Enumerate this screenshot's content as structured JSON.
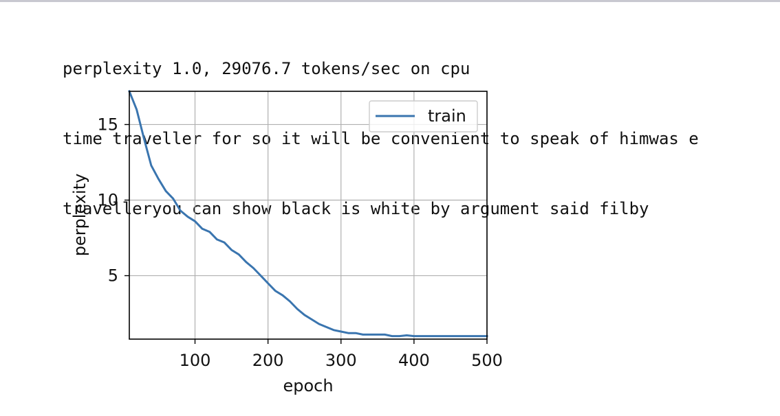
{
  "output_lines": [
    "perplexity 1.0, 29076.7 tokens/sec on cpu",
    "time traveller for so it will be convenient to speak of himwas e",
    "travelleryou can show black is white by argument said filby"
  ],
  "chart_data": {
    "type": "line",
    "xlabel": "epoch",
    "ylabel": "perplexity",
    "xlim": [
      10,
      500
    ],
    "ylim": [
      0.8,
      17.2
    ],
    "xticks": [
      100,
      200,
      300,
      400,
      500
    ],
    "yticks": [
      5,
      10,
      15
    ],
    "grid": true,
    "legend_position": "upper right",
    "series": [
      {
        "name": "train",
        "color": "#3a75af",
        "x": [
          10,
          20,
          30,
          40,
          50,
          60,
          70,
          80,
          90,
          100,
          110,
          120,
          130,
          140,
          150,
          160,
          170,
          180,
          190,
          200,
          210,
          220,
          230,
          240,
          250,
          260,
          270,
          280,
          290,
          300,
          310,
          320,
          330,
          340,
          350,
          360,
          370,
          380,
          390,
          400,
          410,
          420,
          430,
          440,
          450,
          460,
          470,
          480,
          490,
          500
        ],
        "y": [
          17.2,
          16.0,
          14.1,
          12.3,
          11.4,
          10.6,
          10.1,
          9.3,
          8.9,
          8.6,
          8.1,
          7.9,
          7.4,
          7.2,
          6.7,
          6.4,
          5.9,
          5.5,
          5.0,
          4.5,
          4.0,
          3.7,
          3.3,
          2.8,
          2.4,
          2.1,
          1.8,
          1.6,
          1.4,
          1.3,
          1.2,
          1.2,
          1.1,
          1.1,
          1.1,
          1.1,
          1.0,
          1.0,
          1.05,
          1.0,
          1.0,
          1.0,
          1.0,
          1.0,
          1.0,
          1.0,
          1.0,
          1.0,
          1.0,
          1.0
        ]
      }
    ]
  }
}
